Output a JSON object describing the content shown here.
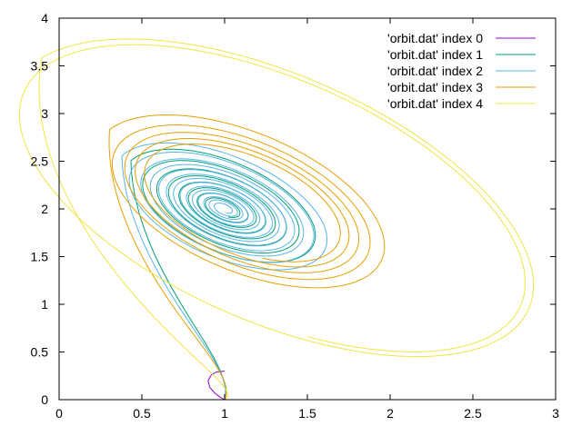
{
  "chart_data": {
    "type": "line",
    "title": "",
    "xlabel": "",
    "ylabel": "",
    "xlim": [
      0,
      3
    ],
    "ylim": [
      0,
      4
    ],
    "xticks": [
      0,
      0.5,
      1,
      1.5,
      2,
      2.5,
      3
    ],
    "yticks": [
      0,
      0.5,
      1,
      1.5,
      2,
      2.5,
      3,
      3.5,
      4
    ],
    "xtick_labels": [
      "0",
      "0.5",
      "1",
      "1.5",
      "2",
      "2.5",
      "3"
    ],
    "ytick_labels": [
      "0",
      "0.5",
      "1",
      "1.5",
      "2",
      "2.5",
      "3",
      "3.5",
      "4"
    ],
    "grid": false,
    "legend_position": "top-right",
    "series": [
      {
        "name": "'orbit.dat' index 0",
        "color": "#9400d3",
        "kind": "arc",
        "points": [
          [
            1.0,
            0.3
          ],
          [
            0.95,
            0.29
          ],
          [
            0.92,
            0.26
          ],
          [
            0.9,
            0.2
          ],
          [
            0.91,
            0.13
          ],
          [
            0.94,
            0.07
          ],
          [
            0.97,
            0.03
          ],
          [
            1.0,
            0.0
          ]
        ]
      },
      {
        "name": "'orbit.dat' index 1",
        "color": "#009e73",
        "kind": "spiral",
        "start": [
          1.0,
          0.0
        ],
        "center": [
          1.0,
          2.0
        ],
        "r_outer": 0.68,
        "r_inner": 0.08,
        "turns": 8,
        "skew": 0.55
      },
      {
        "name": "'orbit.dat' index 2",
        "color": "#56b4e9",
        "kind": "spiral",
        "start": [
          1.0,
          0.0
        ],
        "center": [
          1.0,
          2.0
        ],
        "r_outer": 0.72,
        "r_inner": 0.04,
        "turns": 14,
        "skew": 0.55
      },
      {
        "name": "'orbit.dat' index 3",
        "color": "#e69f00",
        "kind": "limit-cycle",
        "start": [
          1.0,
          0.0
        ],
        "center": [
          1.12,
          2.05
        ],
        "r_outer": 0.95,
        "r_inner": 0.55,
        "turns": 5,
        "skew": 0.55
      },
      {
        "name": "'orbit.dat' index 4",
        "color": "#f0e442",
        "kind": "limit-cycle",
        "start": [
          1.0,
          0.0
        ],
        "center": [
          1.3,
          2.1
        ],
        "r_outer": 1.58,
        "r_inner": 1.45,
        "turns": 2,
        "skew": 0.6
      }
    ]
  }
}
